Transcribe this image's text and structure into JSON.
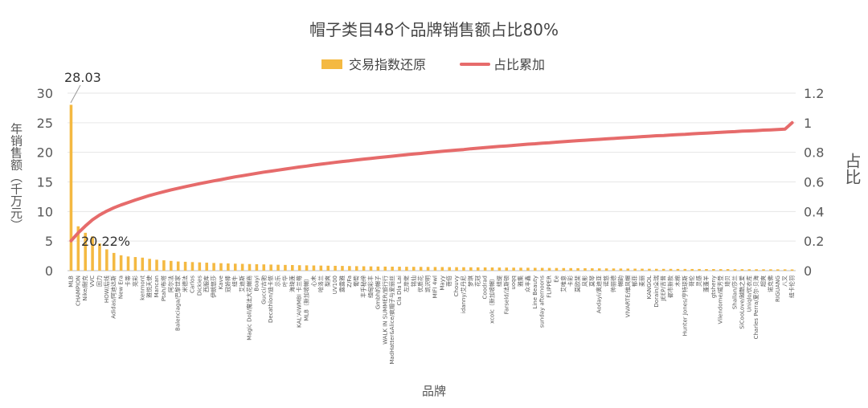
{
  "chart_data": {
    "type": "bar",
    "title": "帽子类目48个品牌销售额占比80%",
    "xlabel": "品牌",
    "ylabel": "年销售额（千万元）",
    "y2label": "占比",
    "ylim": [
      0,
      30
    ],
    "y2lim": [
      0,
      1.2
    ],
    "yticks": [
      "0",
      "5",
      "10",
      "15",
      "20",
      "25",
      "30"
    ],
    "y2ticks": [
      "0",
      "0.2",
      "0.4",
      "0.6",
      "0.8",
      "1",
      "1.2"
    ],
    "legend": {
      "position": "top-center",
      "bar_label": "交易指数还原",
      "line_label": "占比累加"
    },
    "colors": {
      "bar": "#F4B942",
      "line": "#E66B6B",
      "grid": "#E6E6E6",
      "axis": "#BFBFBF"
    },
    "annotations": {
      "first_value": "28.03",
      "first_share": "20.22%"
    },
    "categories": [
      "MLB",
      "CHAMPION",
      "Nike/耐克",
      "VVC",
      "回力",
      "HOW/后线",
      "Adidas/阿迪达斯",
      "New Era",
      "卡蒂",
      "亮彩",
      "kenmont",
      "雅悦天使",
      "Mancan",
      "Ptah/布塔",
      "阿尔法",
      "Balenciaga/巴黎世家",
      "米德法",
      "Carlos",
      "Dickies",
      "西服库",
      "伊朗悠莎",
      "Kave",
      "冠娇棒",
      "纽牛",
      "艾迪斯",
      "Magic Doll/魔法大花帽商",
      "Boayi",
      "Gucci/古驰",
      "Decathlon/迪卡侬",
      "示乐",
      "叶华",
      "海琦莲",
      "KAL'AIWMBI 卡兰莓",
      "MLB（新加坡帽）",
      "心未",
      "哈洛兰",
      "梨爽",
      "UV100",
      "露露雅",
      "Z/Fa",
      "葡萄",
      "丰乎秘缔",
      "缅甸彩丰",
      "Gmbh的帽子",
      "WALK IN SUMMER/旅行行",
      "MadHatter&Alice/疯帽子与爱丽丝",
      "Cla Dla Lai",
      "左岸佬",
      "铭仙",
      "优质花",
      "凯沢明",
      "MIFI 4wl",
      "Mayy",
      "蓓佰",
      "Chouvy",
      "idanny/艾丹尼",
      "梦琪",
      "花冠",
      "Coodrad",
      "xcolc（新加坡帽）",
      "纽缇",
      "Farseld/法斯顿",
      "uoqq",
      "雅集",
      "众丰鑫",
      "Line Beauty",
      "sunday afternoons",
      "FLIPPER",
      "Ee",
      "艾唯意",
      "卡彩",
      "莫欧斐",
      "风影",
      "莫琴",
      "Aodayi/奥迪亚",
      "诺悠",
      "帅丽德",
      "帽韵",
      "VIVARTE/维风帽",
      "郁菲",
      "麦丽",
      "KANGOL",
      "Dorain/朵瑞",
      "JEEP/吉普",
      "都市新款",
      "木棉",
      "Hunter Jones/亨特琼斯",
      "哥伦",
      "灵感",
      "蓬蓬羊",
      "gtsheny",
      "Vilendome/威芳登",
      "琦贝",
      "Shallan/莎兰",
      "SiCooLove/越酷之爱",
      "Uniqlo/优衣库",
      "Charles Perra/夏尔·贝海",
      "超爽",
      "诺克佛",
      "RIGUANG",
      "八叉",
      "纽卡伦羽"
    ],
    "bar_values": [
      28.03,
      7.5,
      6.4,
      5.8,
      4.6,
      3.6,
      3.0,
      2.6,
      2.4,
      2.3,
      2.2,
      2.0,
      1.85,
      1.75,
      1.65,
      1.55,
      1.5,
      1.45,
      1.4,
      1.35,
      1.3,
      1.26,
      1.22,
      1.18,
      1.15,
      1.12,
      1.09,
      1.06,
      1.03,
      1.0,
      0.97,
      0.95,
      0.92,
      0.9,
      0.88,
      0.86,
      0.84,
      0.82,
      0.8,
      0.78,
      0.76,
      0.74,
      0.72,
      0.7,
      0.69,
      0.68,
      0.67,
      0.66,
      0.65,
      0.64,
      0.63,
      0.62,
      0.61,
      0.6,
      0.59,
      0.58,
      0.57,
      0.56,
      0.55,
      0.54,
      0.53,
      0.52,
      0.51,
      0.5,
      0.49,
      0.48,
      0.47,
      0.46,
      0.45,
      0.44,
      0.43,
      0.42,
      0.41,
      0.4,
      0.39,
      0.38,
      0.37,
      0.36,
      0.35,
      0.34,
      0.33,
      0.32,
      0.31,
      0.3,
      0.3,
      0.29,
      0.29,
      0.28,
      0.28,
      0.27,
      0.27,
      0.26,
      0.26,
      0.25,
      0.25,
      0.24,
      0.24,
      0.23,
      0.23,
      0.22,
      0.22,
      0.21
    ],
    "line_values": [
      0.2022,
      0.256,
      0.302,
      0.344,
      0.377,
      0.403,
      0.425,
      0.444,
      0.461,
      0.478,
      0.493,
      0.508,
      0.521,
      0.534,
      0.546,
      0.557,
      0.568,
      0.578,
      0.588,
      0.598,
      0.607,
      0.616,
      0.625,
      0.634,
      0.642,
      0.65,
      0.658,
      0.666,
      0.673,
      0.68,
      0.687,
      0.694,
      0.701,
      0.707,
      0.714,
      0.72,
      0.726,
      0.732,
      0.738,
      0.743,
      0.749,
      0.754,
      0.759,
      0.764,
      0.769,
      0.774,
      0.779,
      0.784,
      0.789,
      0.793,
      0.798,
      0.802,
      0.807,
      0.811,
      0.815,
      0.819,
      0.824,
      0.828,
      0.832,
      0.836,
      0.84,
      0.843,
      0.847,
      0.851,
      0.855,
      0.858,
      0.862,
      0.865,
      0.869,
      0.872,
      0.876,
      0.879,
      0.882,
      0.885,
      0.888,
      0.891,
      0.894,
      0.897,
      0.9,
      0.903,
      0.906,
      0.909,
      0.912,
      0.914,
      0.917,
      0.92,
      0.922,
      0.925,
      0.928,
      0.93,
      0.933,
      0.935,
      0.938,
      0.94,
      0.943,
      0.945,
      0.947,
      0.95,
      0.952,
      0.954,
      0.957,
      1.0
    ]
  }
}
